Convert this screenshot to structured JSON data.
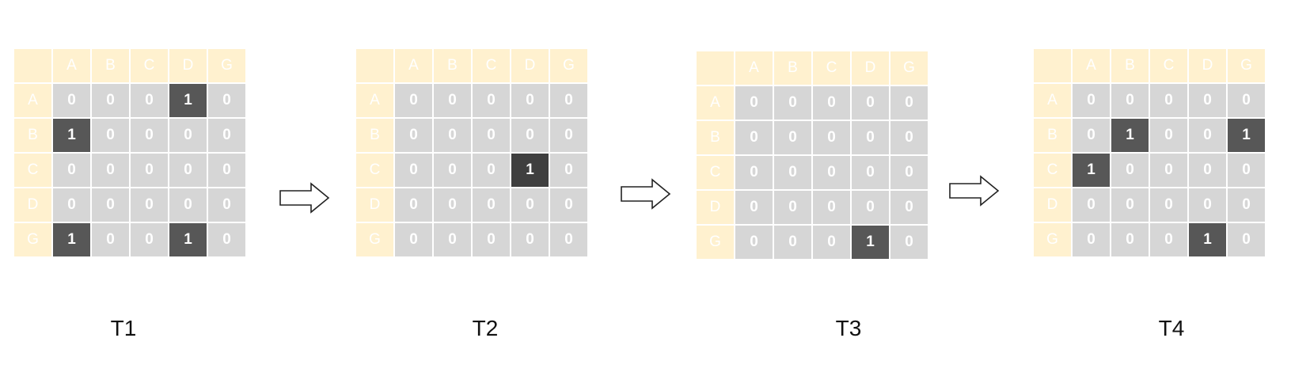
{
  "column_headers": [
    "A",
    "B",
    "C",
    "D",
    "G"
  ],
  "row_headers": [
    "A",
    "B",
    "C",
    "D",
    "G"
  ],
  "panels": [
    {
      "label": "T1",
      "cells": [
        [
          "0",
          "0",
          "0",
          "1",
          "0"
        ],
        [
          "1",
          "0",
          "0",
          "0",
          "0"
        ],
        [
          "0",
          "0",
          "0",
          "0",
          "0"
        ],
        [
          "0",
          "0",
          "0",
          "0",
          "0"
        ],
        [
          "1",
          "0",
          "0",
          "1",
          "0"
        ]
      ]
    },
    {
      "label": "T2",
      "cells": [
        [
          "0",
          "0",
          "0",
          "0",
          "0"
        ],
        [
          "0",
          "0",
          "0",
          "0",
          "0"
        ],
        [
          "0",
          "0",
          "0",
          "1",
          "0"
        ],
        [
          "0",
          "0",
          "0",
          "0",
          "0"
        ],
        [
          "0",
          "0",
          "0",
          "0",
          "0"
        ]
      ]
    },
    {
      "label": "T3",
      "cells": [
        [
          "0",
          "0",
          "0",
          "0",
          "0"
        ],
        [
          "0",
          "0",
          "0",
          "0",
          "0"
        ],
        [
          "0",
          "0",
          "0",
          "0",
          "0"
        ],
        [
          "0",
          "0",
          "0",
          "0",
          "0"
        ],
        [
          "0",
          "0",
          "0",
          "1",
          "0"
        ]
      ]
    },
    {
      "label": "T4",
      "cells": [
        [
          "0",
          "0",
          "0",
          "0",
          "0"
        ],
        [
          "0",
          "1",
          "0",
          "0",
          "1"
        ],
        [
          "1",
          "0",
          "0",
          "0",
          "0"
        ],
        [
          "0",
          "0",
          "0",
          "0",
          "0"
        ],
        [
          "0",
          "0",
          "0",
          "1",
          "0"
        ]
      ]
    }
  ],
  "colors": {
    "header_bg": "#fff1cf",
    "cell_bg": "#d6d6d6",
    "active_cell_bg": "#575757",
    "text": "#ffffff"
  },
  "arrow_icon": "right-arrow-icon"
}
